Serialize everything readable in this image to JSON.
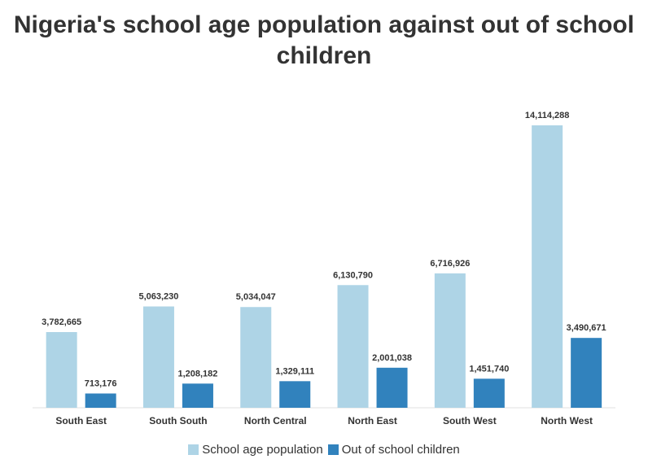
{
  "chart_data": {
    "type": "bar",
    "title": "Nigeria's school age population against out of school children",
    "categories": [
      "South East",
      "South South",
      "North Central",
      "North East",
      "South West",
      "North West"
    ],
    "series": [
      {
        "name": "School age population",
        "color": "#aed4e6",
        "values": [
          3782665,
          5063230,
          5034047,
          6130790,
          6716926,
          14114288
        ],
        "labels": [
          "3,782,665",
          "5,063,230",
          "5,034,047",
          "6,130,790",
          "6,716,926",
          "14,114,288"
        ]
      },
      {
        "name": "Out of school children",
        "color": "#3182bd",
        "values": [
          713176,
          1208182,
          1329111,
          2001038,
          1451740,
          3490671
        ],
        "labels": [
          "713,176",
          "1,208,182",
          "1,329,111",
          "2,001,038",
          "1,451,740",
          "3,490,671"
        ]
      }
    ],
    "xlabel": "",
    "ylabel": "",
    "ylim": [
      0,
      14114288
    ],
    "grid": false,
    "legend": "bottom-center"
  }
}
